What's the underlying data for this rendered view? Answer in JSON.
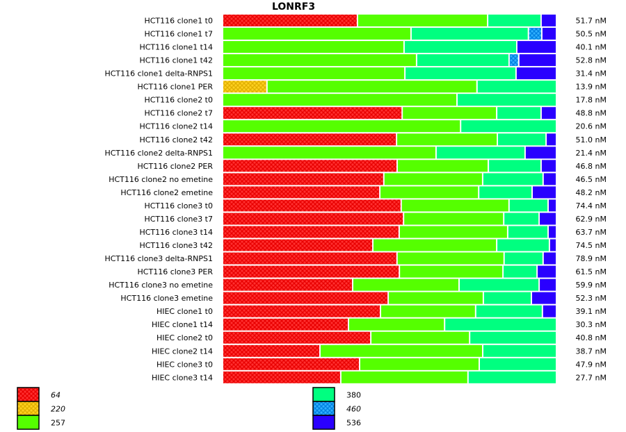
{
  "chart_data": {
    "type": "bar",
    "orientation": "horizontal",
    "stacked": "percent",
    "title": "LONRF3",
    "xlabel": "",
    "ylabel": "",
    "grid": false,
    "legend_position": "bottom",
    "legend": [
      {
        "name": "64",
        "color": "#ff0000",
        "pattern": "hatched",
        "italic": true
      },
      {
        "name": "220",
        "color": "#f0c000",
        "pattern": "hatched",
        "italic": true
      },
      {
        "name": "257",
        "color": "#55ff00",
        "pattern": "solid",
        "italic": false
      },
      {
        "name": "380",
        "color": "#00ff80",
        "pattern": "solid",
        "italic": false
      },
      {
        "name": "460",
        "color": "#0090f0",
        "pattern": "hatched",
        "italic": true
      },
      {
        "name": "536",
        "color": "#2a00ff",
        "pattern": "solid",
        "italic": false
      }
    ],
    "categories": [
      "HCT116 clone1 t0",
      "HCT116 clone1 t7",
      "HCT116 clone1 t14",
      "HCT116 clone1 t42",
      "HCT116 clone1 delta-RNPS1",
      "HCT116 clone1 PER",
      "HCT116 clone2 t0",
      "HCT116 clone2 t7",
      "HCT116 clone2 t14",
      "HCT116 clone2 t42",
      "HCT116 clone2 delta-RNPS1",
      "HCT116 clone2 PER",
      "HCT116 clone2 no emetine",
      "HCT116 clone2 emetine",
      "HCT116 clone3 t0",
      "HCT116 clone3 t7",
      "HCT116 clone3 t14",
      "HCT116 clone3 t42",
      "HCT116 clone3 delta-RNPS1",
      "HCT116 clone3 PER",
      "HCT116 clone3 no emetine",
      "HCT116 clone3 emetine",
      "HIEC clone1 t0",
      "HIEC clone1 t14",
      "HIEC clone2 t0",
      "HIEC clone2 t14",
      "HIEC clone3 t0",
      "HIEC clone3 t14"
    ],
    "totals": [
      "51.7 nM",
      "50.5 nM",
      "40.1 nM",
      "52.8 nM",
      "31.4 nM",
      "13.9 nM",
      "17.8 nM",
      "48.8 nM",
      "20.6 nM",
      "51.0 nM",
      "21.4 nM",
      "46.8 nM",
      "46.5 nM",
      "48.2 nM",
      "74.4 nM",
      "62.9 nM",
      "63.7 nM",
      "74.5 nM",
      "78.9 nM",
      "61.5 nM",
      "59.9 nM",
      "52.3 nM",
      "39.1 nM",
      "30.3 nM",
      "40.8 nM",
      "38.7 nM",
      "47.9 nM",
      "27.7 nM"
    ],
    "series": [
      {
        "name": "64",
        "values": [
          40.4,
          0,
          0,
          0,
          0,
          0,
          0,
          53.8,
          0,
          52.1,
          0,
          52.3,
          48.3,
          47.1,
          53.5,
          54.2,
          52.9,
          45.0,
          52.3,
          52.9,
          39.0,
          49.6,
          47.3,
          37.7,
          44.4,
          29.2,
          41.0,
          35.4
        ]
      },
      {
        "name": "220",
        "values": [
          0,
          0,
          0,
          0,
          0,
          13.3,
          0,
          0,
          0,
          0,
          0,
          0,
          0,
          0,
          0,
          0,
          0,
          0,
          0,
          0,
          0,
          0,
          0,
          0,
          0,
          0,
          0,
          0
        ]
      },
      {
        "name": "257",
        "values": [
          39.0,
          56.5,
          54.4,
          58.1,
          54.6,
          62.9,
          70.2,
          28.3,
          71.3,
          30.2,
          64.0,
          27.3,
          29.6,
          29.6,
          32.3,
          30.0,
          32.5,
          37.1,
          32.1,
          31.0,
          31.9,
          28.5,
          28.5,
          28.8,
          29.6,
          48.8,
          35.8,
          38.1
        ]
      },
      {
        "name": "380",
        "values": [
          16.0,
          35.2,
          33.8,
          27.7,
          33.3,
          23.8,
          29.8,
          13.3,
          28.7,
          14.6,
          26.7,
          15.8,
          18.1,
          16.0,
          11.7,
          10.6,
          12.1,
          15.8,
          11.7,
          10.2,
          24.0,
          14.4,
          20.0,
          33.5,
          26.0,
          22.1,
          23.1,
          26.5
        ]
      },
      {
        "name": "460",
        "values": [
          0,
          4.0,
          0,
          2.9,
          0,
          0,
          0,
          0,
          0,
          0,
          0,
          0,
          0,
          0,
          0,
          0,
          0,
          0,
          0,
          0,
          0,
          0,
          0,
          0,
          0,
          0,
          0,
          0
        ]
      },
      {
        "name": "536",
        "values": [
          4.6,
          4.4,
          11.9,
          11.3,
          12.1,
          0,
          0,
          4.6,
          0,
          3.1,
          9.4,
          4.6,
          4.0,
          7.3,
          2.5,
          5.2,
          2.5,
          2.1,
          4.0,
          5.8,
          5.2,
          7.5,
          4.2,
          0,
          0,
          0,
          0,
          0
        ]
      }
    ],
    "xlim": [
      0,
      100
    ]
  }
}
